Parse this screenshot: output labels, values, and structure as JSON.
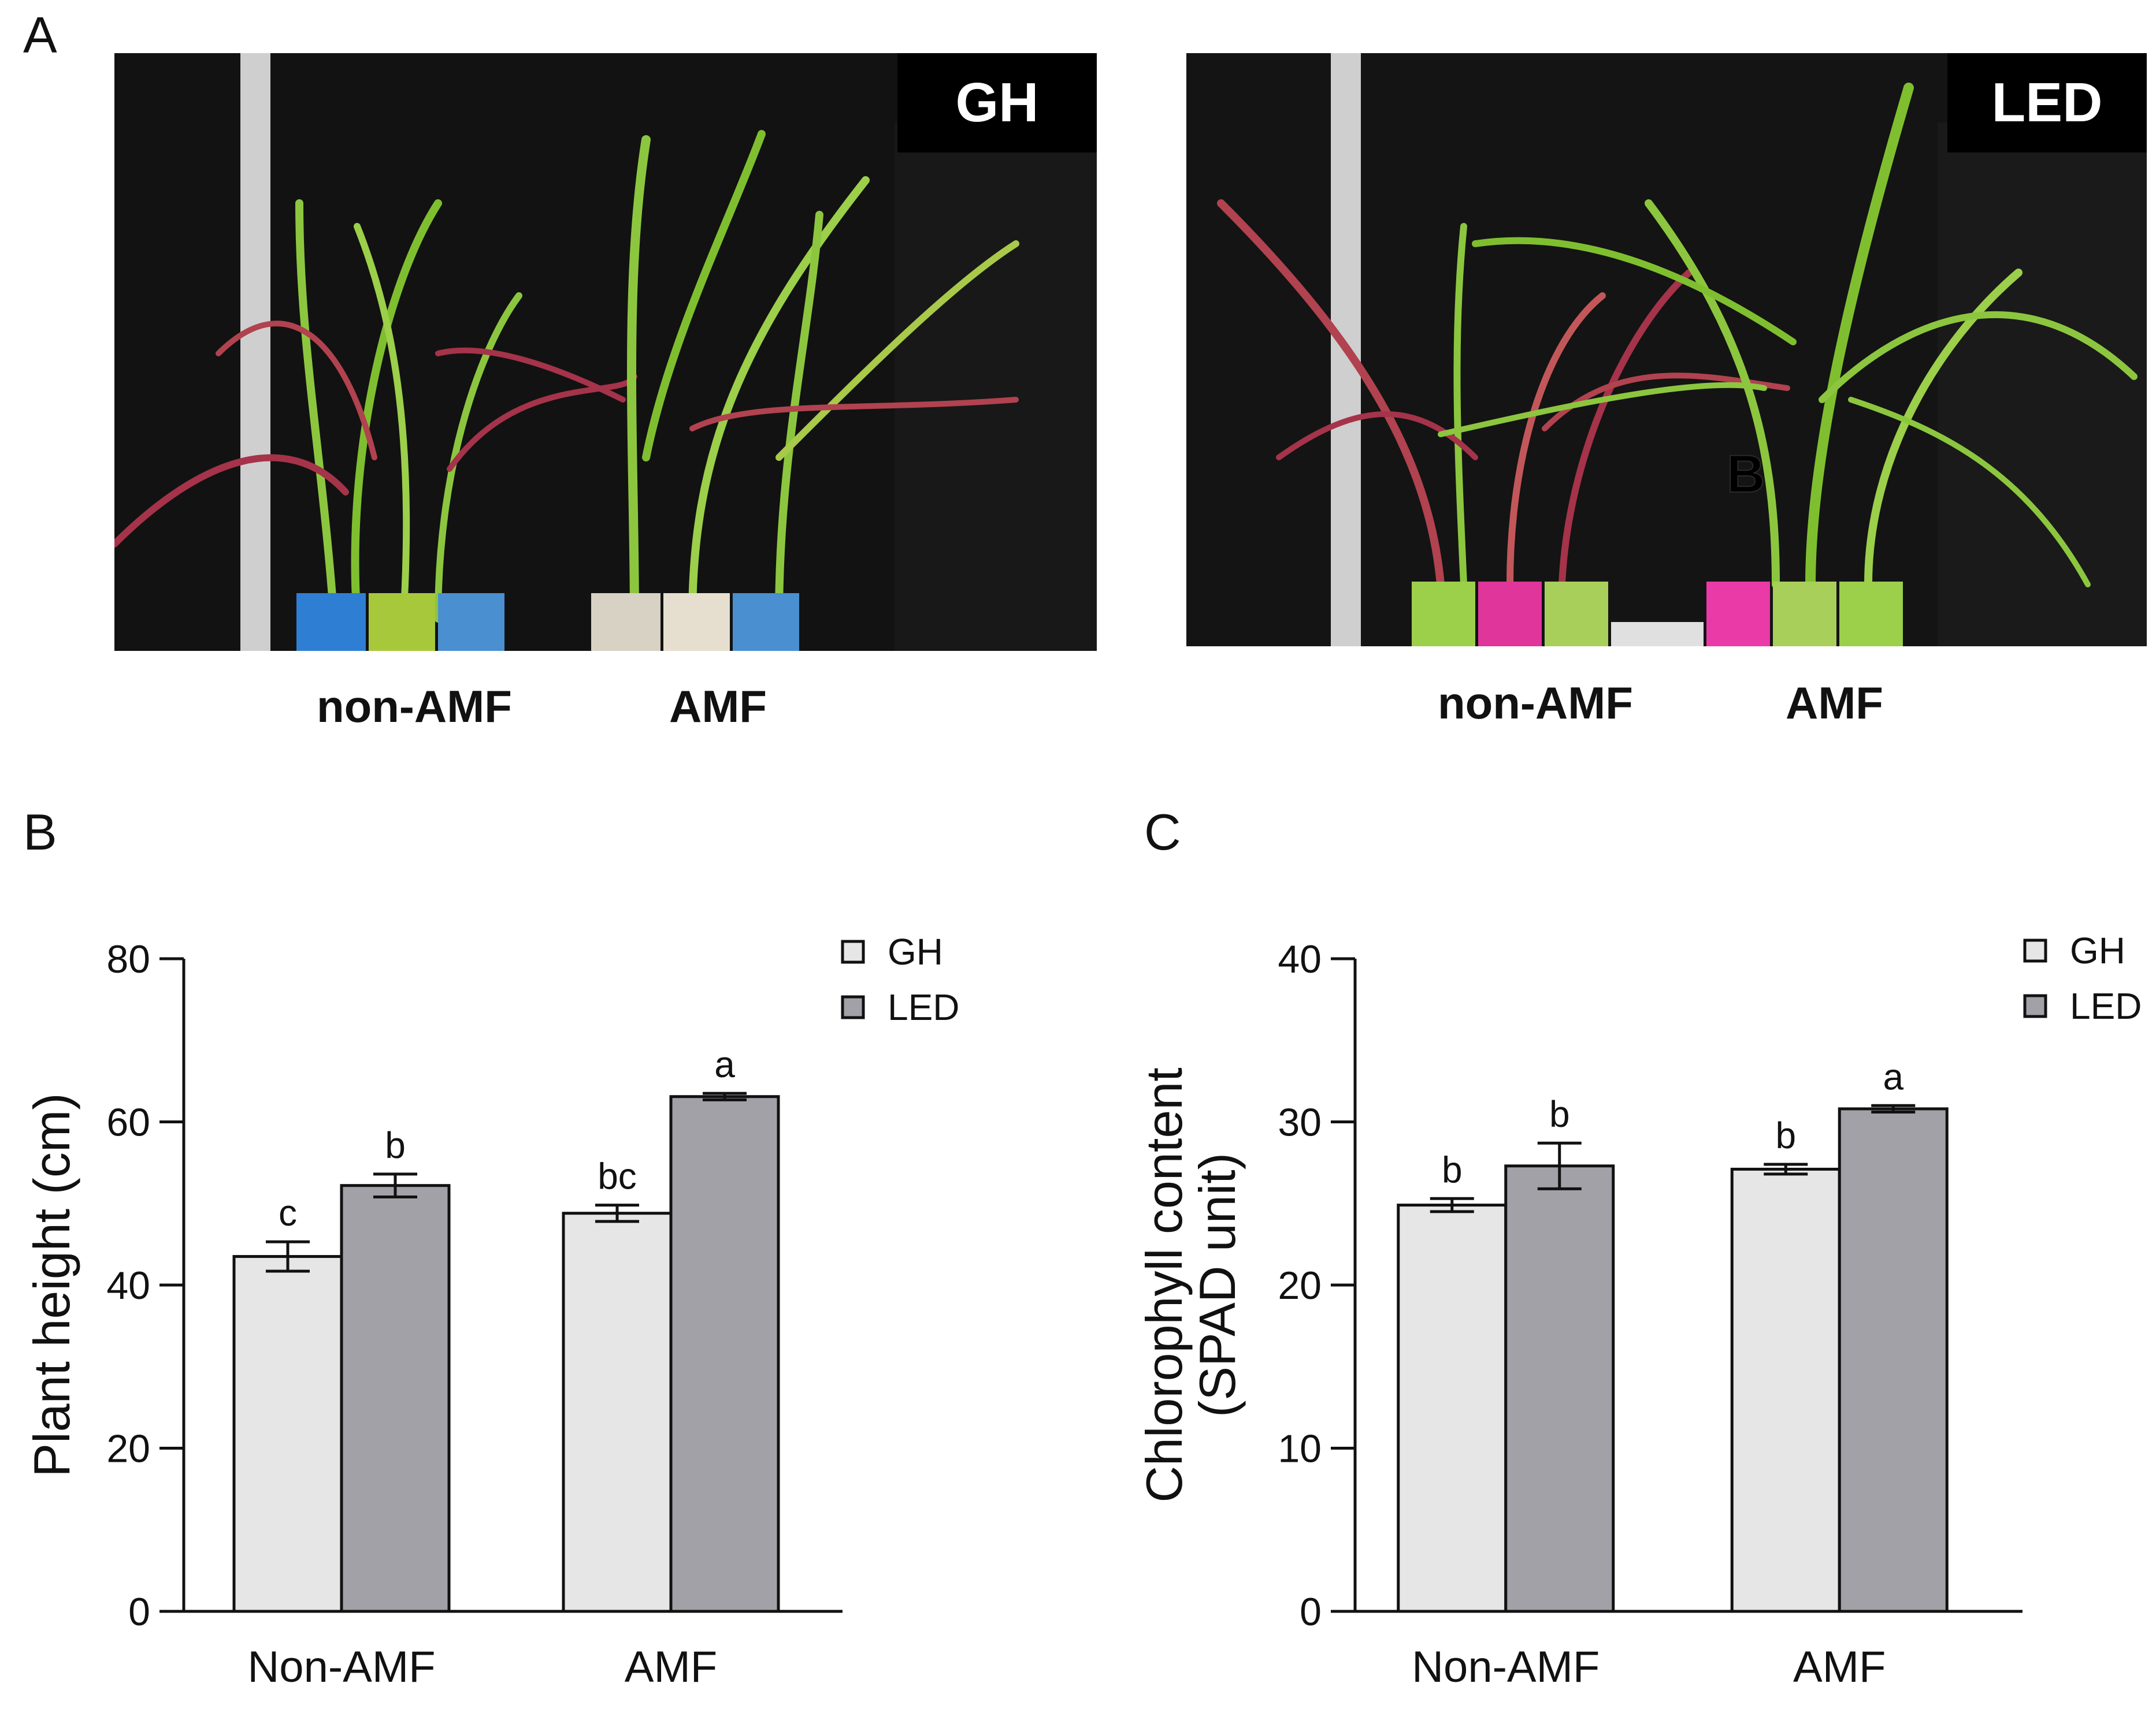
{
  "panels": {
    "a": "A",
    "b": "B",
    "c": "C"
  },
  "photos": {
    "gh": {
      "tag": "GH",
      "label_left": "non-AMF",
      "label_right": "AMF"
    },
    "led": {
      "tag": "LED",
      "label_left": "non-AMF",
      "label_right": "AMF",
      "pot_mark": "B"
    }
  },
  "colors": {
    "gh_bar": "#e6e6e6",
    "led_bar": "#a2a1a7",
    "axis": "#111111",
    "photo_bg": "#111111",
    "leaf_green": "#8cc63f",
    "leaf_red": "#a5334a"
  },
  "chart_data": [
    {
      "type": "bar",
      "ylabel": "Plant height (cm)",
      "xlabel": "",
      "categories": [
        "Non-AMF",
        "AMF"
      ],
      "ylim": [
        0,
        80
      ],
      "yticks": [
        0,
        20,
        40,
        60,
        80
      ],
      "legend_position": "top-right",
      "series": [
        {
          "name": "GH",
          "values": [
            43.5,
            48.8
          ],
          "errors": [
            1.8,
            1.0
          ],
          "letters": [
            "c",
            "bc"
          ]
        },
        {
          "name": "LED",
          "values": [
            52.2,
            63.1
          ],
          "errors": [
            1.4,
            0.4
          ],
          "letters": [
            "b",
            "a"
          ]
        }
      ]
    },
    {
      "type": "bar",
      "ylabel": "Chlorophyll content (SPAD unit)",
      "ylabel_lines": [
        "Chlorophyll content",
        "(SPAD unit)"
      ],
      "xlabel": "",
      "categories": [
        "Non-AMF",
        "AMF"
      ],
      "ylim": [
        0,
        40
      ],
      "yticks": [
        0,
        10,
        20,
        30,
        40
      ],
      "legend_position": "top-right",
      "series": [
        {
          "name": "GH",
          "values": [
            24.9,
            27.1
          ],
          "errors": [
            0.4,
            0.3
          ],
          "letters": [
            "b",
            "b"
          ]
        },
        {
          "name": "LED",
          "values": [
            27.3,
            30.8
          ],
          "errors": [
            1.4,
            0.2
          ],
          "letters": [
            "b",
            "a"
          ]
        }
      ]
    }
  ]
}
